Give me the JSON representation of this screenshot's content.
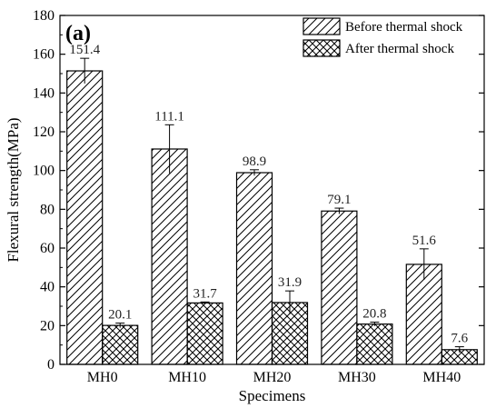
{
  "chart_data": {
    "type": "bar",
    "panel_label": "(a)",
    "categories": [
      "MH0",
      "MH10",
      "MH20",
      "MH30",
      "MH40"
    ],
    "series": [
      {
        "name": "Before thermal shock",
        "values": [
          151.4,
          111.1,
          98.9,
          79.1,
          51.6
        ],
        "labels": [
          "151.4",
          "111.1",
          "98.9",
          "79.1",
          "51.6"
        ],
        "errors": [
          6.5,
          12.5,
          1.5,
          1.5,
          8
        ],
        "pattern": "diagonal-hatch"
      },
      {
        "name": "After thermal shock",
        "values": [
          20.1,
          31.7,
          31.9,
          20.8,
          7.6
        ],
        "labels": [
          "20.1",
          "31.7",
          "31.9",
          "20.8",
          "7.6"
        ],
        "errors": [
          1.2,
          0.5,
          6,
          1,
          1.5
        ],
        "pattern": "cross-hatch"
      }
    ],
    "xlabel": "Specimens",
    "ylabel": "Flexural strength(MPa)",
    "ylim": [
      0,
      180
    ],
    "yticks": [
      0,
      20,
      40,
      60,
      80,
      100,
      120,
      140,
      160,
      180
    ],
    "legend_position": "top-right",
    "grid": false
  }
}
